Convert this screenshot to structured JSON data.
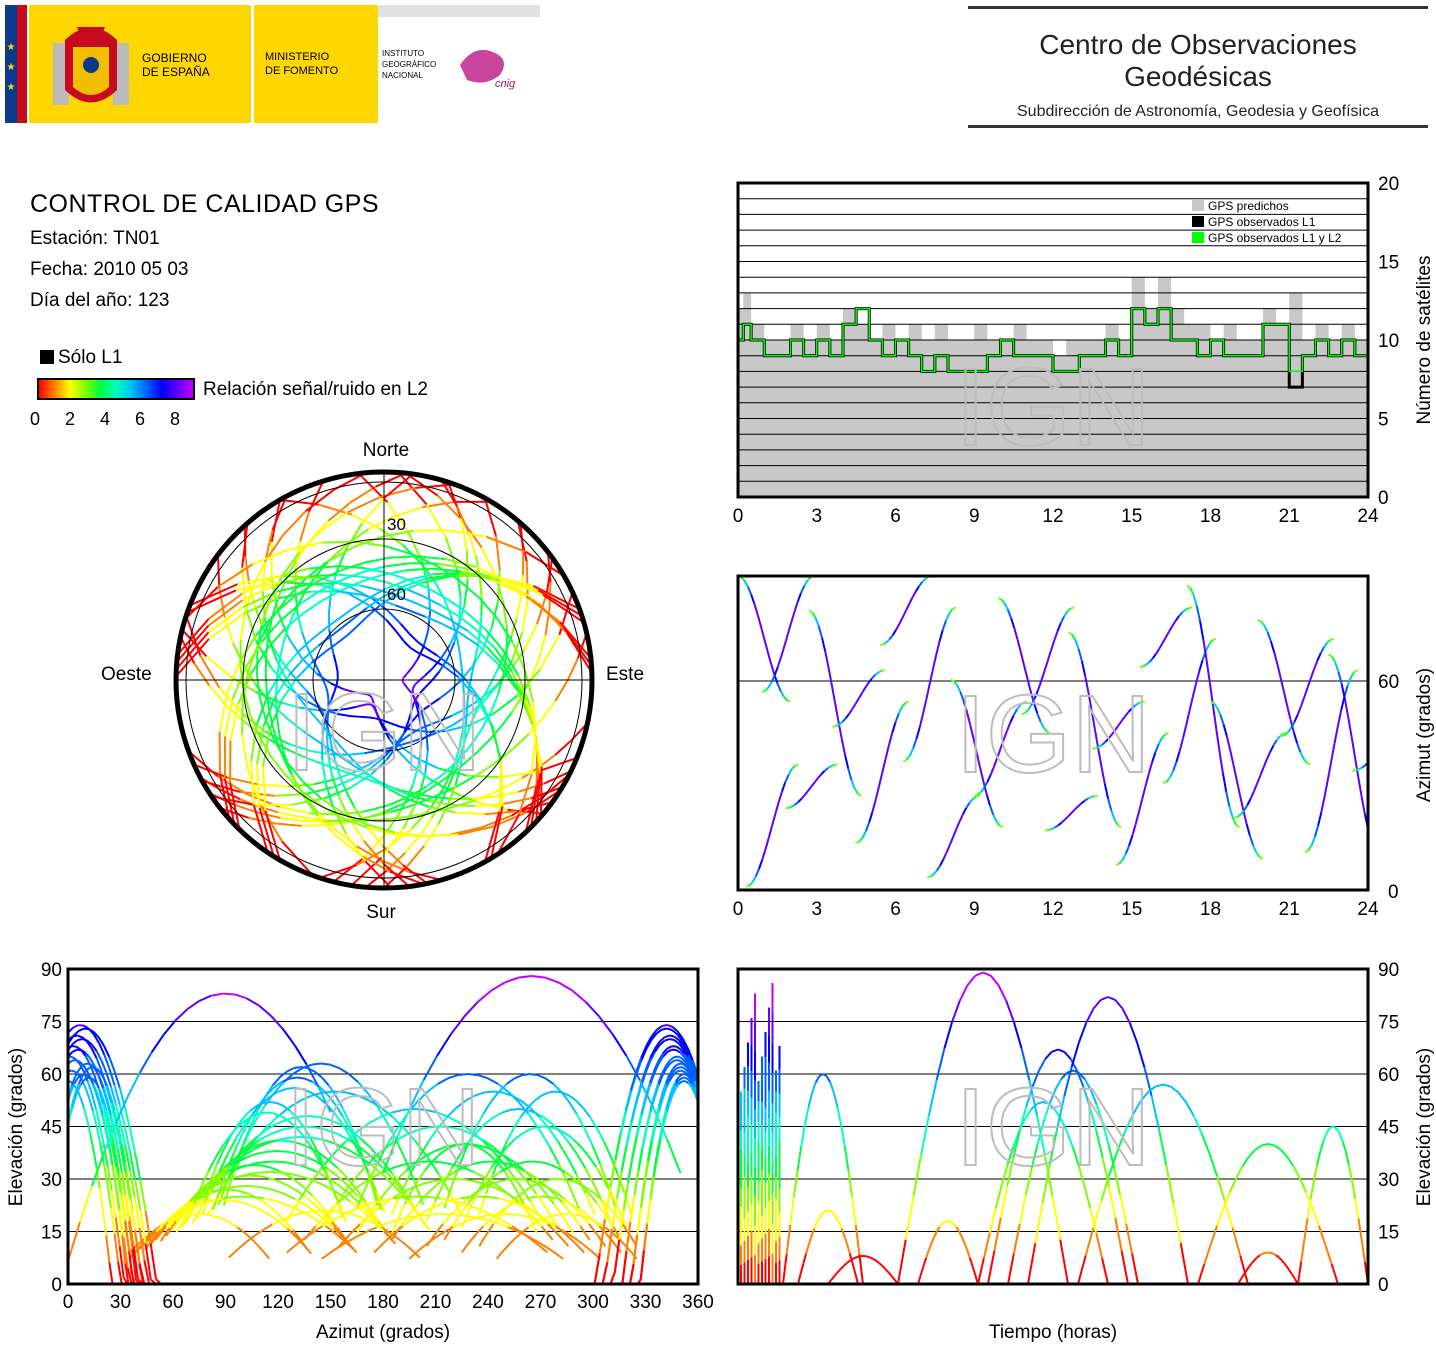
{
  "header": {
    "gov_line1": "GOBIERNO",
    "gov_line2": "DE ESPAÑA",
    "min_line1": "MINISTERIO",
    "min_line2": "DE FOMENTO",
    "ign_line1": "INSTITUTO",
    "ign_line2": "GEOGRÁFICO",
    "ign_line3": "NACIONAL",
    "cnig_logo_text": "cnig",
    "center_title": "Centro de Observaciones Geodésicas",
    "center_subtitle": "Subdirección de Astronomía, Geodesia y Geofísica"
  },
  "info": {
    "title": "CONTROL DE CALIDAD GPS",
    "station": "Estación: TN01",
    "date": "Fecha: 2010 05 03",
    "doy": "Día del año: 123"
  },
  "legend": {
    "only_l1": "Sólo L1",
    "snr_label": "Relación señal/ruido en L2",
    "ticks": [
      "0",
      "2",
      "4",
      "6",
      "8"
    ]
  },
  "watermark": "IGN",
  "colors": {
    "predicted": "#c8c8c8",
    "observed_l1": "#000000",
    "observed_l1_l2": "#00ff00",
    "snr_scale": [
      "#ff0000",
      "#ff8000",
      "#ffff00",
      "#80ff00",
      "#00ff40",
      "#00ffc0",
      "#00c0ff",
      "#0060ff",
      "#0000ff",
      "#6000ff",
      "#c000ff"
    ]
  },
  "chart_data": [
    {
      "type": "line",
      "id": "satellites",
      "title": "",
      "xlabel": "",
      "ylabel": "Número de satélites",
      "xlim": [
        0,
        24
      ],
      "ylim": [
        0,
        20
      ],
      "x_ticks": [
        "0",
        "3",
        "6",
        "9",
        "12",
        "15",
        "18",
        "21",
        "24"
      ],
      "y_ticks": [
        "0",
        "5",
        "10",
        "15",
        "20"
      ],
      "legend": [
        "GPS predichos",
        "GPS observados L1",
        "GPS observados L1 y L2"
      ],
      "legend_position": "top-right",
      "grid": true,
      "series": [
        {
          "name": "GPS predichos",
          "x": [
            0,
            0.2,
            0.5,
            1,
            1.5,
            2,
            2.5,
            3,
            3.5,
            4,
            4.5,
            5,
            5.5,
            6,
            6.5,
            7,
            7.5,
            8,
            8.5,
            9,
            9.5,
            10,
            10.5,
            11,
            11.5,
            12,
            12.5,
            13,
            13.5,
            14,
            14.5,
            15,
            15.5,
            16,
            16.5,
            17,
            17.5,
            18,
            18.5,
            19,
            19.5,
            20,
            20.5,
            21,
            21.5,
            22,
            22.5,
            23,
            23.5,
            24
          ],
          "y": [
            12,
            13,
            11,
            10,
            10,
            11,
            10,
            11,
            10,
            12,
            11,
            10,
            11,
            10,
            11,
            10,
            11,
            10,
            10,
            11,
            10,
            10,
            11,
            10,
            10,
            9,
            10,
            10,
            10,
            11,
            10,
            14,
            12,
            14,
            12,
            11,
            11,
            10,
            11,
            10,
            10,
            12,
            11,
            13,
            10,
            11,
            10,
            11,
            10,
            13
          ]
        },
        {
          "name": "GPS observados L1",
          "x": [
            0,
            0.2,
            0.5,
            1,
            1.5,
            2,
            2.5,
            3,
            3.5,
            4,
            4.5,
            5,
            5.5,
            6,
            6.5,
            7,
            7.5,
            8,
            8.5,
            9,
            9.5,
            10,
            10.5,
            11,
            11.5,
            12,
            12.5,
            13,
            13.5,
            14,
            14.5,
            15,
            15.5,
            16,
            16.5,
            17,
            17.5,
            18,
            18.5,
            19,
            19.5,
            20,
            20.5,
            21,
            21.5,
            22,
            22.5,
            23,
            23.5,
            24
          ],
          "y": [
            10,
            11,
            10,
            9,
            9,
            10,
            9,
            10,
            9,
            11,
            12,
            10,
            9,
            10,
            9,
            8,
            9,
            8,
            8,
            8,
            9,
            10,
            9,
            9,
            9,
            8,
            8,
            9,
            9,
            10,
            9,
            12,
            11,
            12,
            10,
            10,
            9,
            10,
            9,
            9,
            9,
            11,
            11,
            7,
            9,
            10,
            9,
            10,
            9,
            12
          ]
        },
        {
          "name": "GPS observados L1 y L2",
          "x": [
            0,
            0.2,
            0.5,
            1,
            1.5,
            2,
            2.5,
            3,
            3.5,
            4,
            4.5,
            5,
            5.5,
            6,
            6.5,
            7,
            7.5,
            8,
            8.5,
            9,
            9.5,
            10,
            10.5,
            11,
            11.5,
            12,
            12.5,
            13,
            13.5,
            14,
            14.5,
            15,
            15.5,
            16,
            16.5,
            17,
            17.5,
            18,
            18.5,
            19,
            19.5,
            20,
            20.5,
            21,
            21.5,
            22,
            22.5,
            23,
            23.5,
            24
          ],
          "y": [
            10,
            11,
            10,
            9,
            9,
            10,
            9,
            10,
            9,
            11,
            12,
            10,
            9,
            10,
            9,
            8,
            9,
            8,
            8,
            8,
            9,
            10,
            9,
            9,
            9,
            8,
            8,
            9,
            9,
            10,
            9,
            12,
            11,
            12,
            10,
            10,
            9,
            10,
            9,
            9,
            9,
            11,
            11,
            8,
            9,
            10,
            9,
            10,
            9,
            12
          ]
        }
      ]
    },
    {
      "type": "scatter",
      "id": "skyplot",
      "title": "",
      "labels": {
        "north": "Norte",
        "south": "Sur",
        "east": "Este",
        "west": "Oeste"
      },
      "ring_labels": [
        "30",
        "60"
      ],
      "color_meaning": "Relación señal/ruido en L2"
    },
    {
      "type": "scatter",
      "id": "azimuth_time",
      "title": "",
      "xlabel": "",
      "ylabel": "Azimut (grados)",
      "xlim": [
        0,
        24
      ],
      "x_ticks": [
        "0",
        "3",
        "6",
        "9",
        "12",
        "15",
        "18",
        "21",
        "24"
      ],
      "y_ticks": [
        "0",
        "60"
      ],
      "grid": true
    },
    {
      "type": "scatter",
      "id": "elev_azimuth",
      "title": "",
      "xlabel": "Azimut (grados)",
      "ylabel": "Elevación (grados)",
      "xlim": [
        0,
        360
      ],
      "ylim": [
        0,
        90
      ],
      "x_ticks": [
        "0",
        "30",
        "60",
        "90",
        "120",
        "150",
        "180",
        "210",
        "240",
        "270",
        "300",
        "330",
        "360"
      ],
      "y_ticks": [
        "0",
        "15",
        "30",
        "45",
        "60",
        "75",
        "90"
      ],
      "grid": true
    },
    {
      "type": "scatter",
      "id": "elev_time",
      "title": "",
      "xlabel": "Tiempo (horas)",
      "ylabel": "Elevación (grados)",
      "ylim": [
        0,
        90
      ],
      "y_ticks": [
        "0",
        "15",
        "30",
        "45",
        "60",
        "75",
        "90"
      ],
      "grid": true
    }
  ]
}
